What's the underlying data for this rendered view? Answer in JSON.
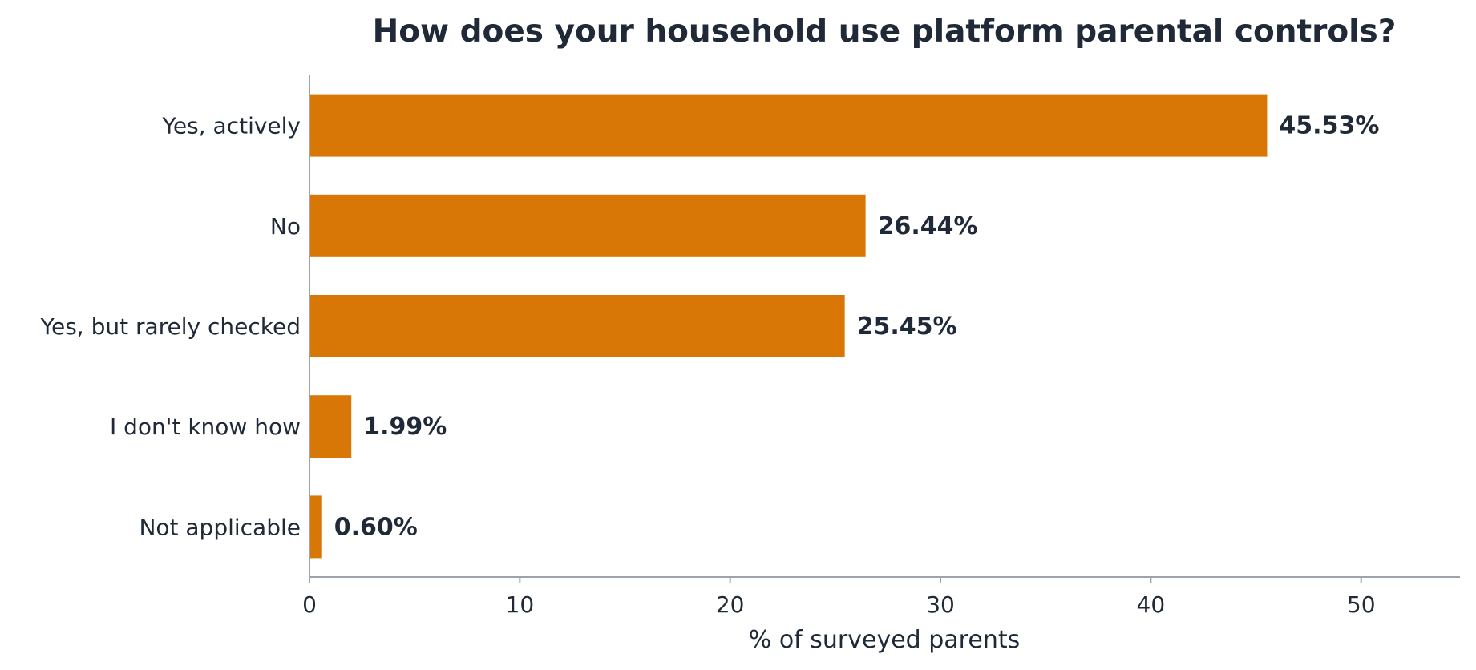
{
  "chart_data": {
    "type": "bar",
    "orientation": "horizontal",
    "title": "How does your household use platform parental controls?",
    "xlabel": "% of surveyed parents",
    "ylabel": "",
    "categories": [
      "Yes, actively",
      "No",
      "Yes, but rarely checked",
      "I don't know how",
      "Not applicable"
    ],
    "values": [
      45.53,
      26.44,
      25.45,
      1.99,
      0.6
    ],
    "value_labels": [
      "45.53%",
      "26.44%",
      "25.45%",
      "1.99%",
      "0.60%"
    ],
    "xlim": [
      0,
      54.7
    ],
    "xticks": [
      0,
      10,
      20,
      30,
      40,
      50
    ],
    "xtick_labels": [
      "0",
      "10",
      "20",
      "30",
      "40",
      "50"
    ],
    "grid": false,
    "legend": "none"
  },
  "colors": {
    "bar": "#d97706",
    "text": "#1f2937",
    "axis": "#9ca3af",
    "background": "#ffffff"
  }
}
